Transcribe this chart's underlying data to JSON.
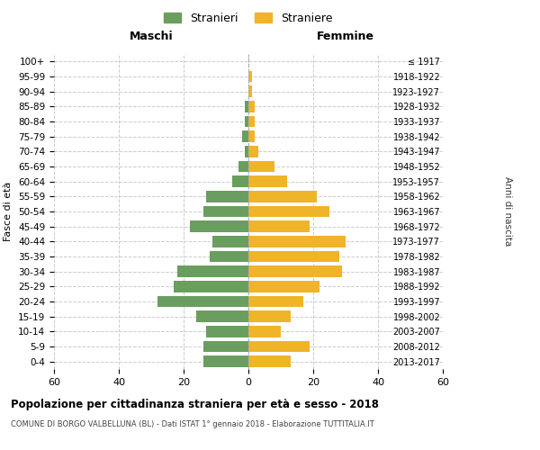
{
  "age_groups": [
    "0-4",
    "5-9",
    "10-14",
    "15-19",
    "20-24",
    "25-29",
    "30-34",
    "35-39",
    "40-44",
    "45-49",
    "50-54",
    "55-59",
    "60-64",
    "65-69",
    "70-74",
    "75-79",
    "80-84",
    "85-89",
    "90-94",
    "95-99",
    "100+"
  ],
  "birth_years": [
    "2013-2017",
    "2008-2012",
    "2003-2007",
    "1998-2002",
    "1993-1997",
    "1988-1992",
    "1983-1987",
    "1978-1982",
    "1973-1977",
    "1968-1972",
    "1963-1967",
    "1958-1962",
    "1953-1957",
    "1948-1952",
    "1943-1947",
    "1938-1942",
    "1933-1937",
    "1928-1932",
    "1923-1927",
    "1918-1922",
    "≤ 1917"
  ],
  "males": [
    14,
    14,
    13,
    16,
    28,
    23,
    22,
    12,
    11,
    18,
    14,
    13,
    5,
    3,
    1,
    2,
    1,
    1,
    0,
    0,
    0
  ],
  "females": [
    13,
    19,
    10,
    13,
    17,
    22,
    29,
    28,
    30,
    19,
    25,
    21,
    12,
    8,
    3,
    2,
    2,
    2,
    1,
    1,
    0
  ],
  "male_color": "#6a9e5e",
  "female_color": "#f0b429",
  "background_color": "#ffffff",
  "grid_color": "#cccccc",
  "title": "Popolazione per cittadinanza straniera per età e sesso - 2018",
  "subtitle": "COMUNE DI BORGO VALBELLUNA (BL) - Dati ISTAT 1° gennaio 2018 - Elaborazione TUTTITALIA.IT",
  "xlabel_left": "Maschi",
  "xlabel_right": "Femmine",
  "ylabel_left": "Fasce di età",
  "ylabel_right": "Anni di nascita",
  "legend_male": "Stranieri",
  "legend_female": "Straniere",
  "xlim": 60
}
